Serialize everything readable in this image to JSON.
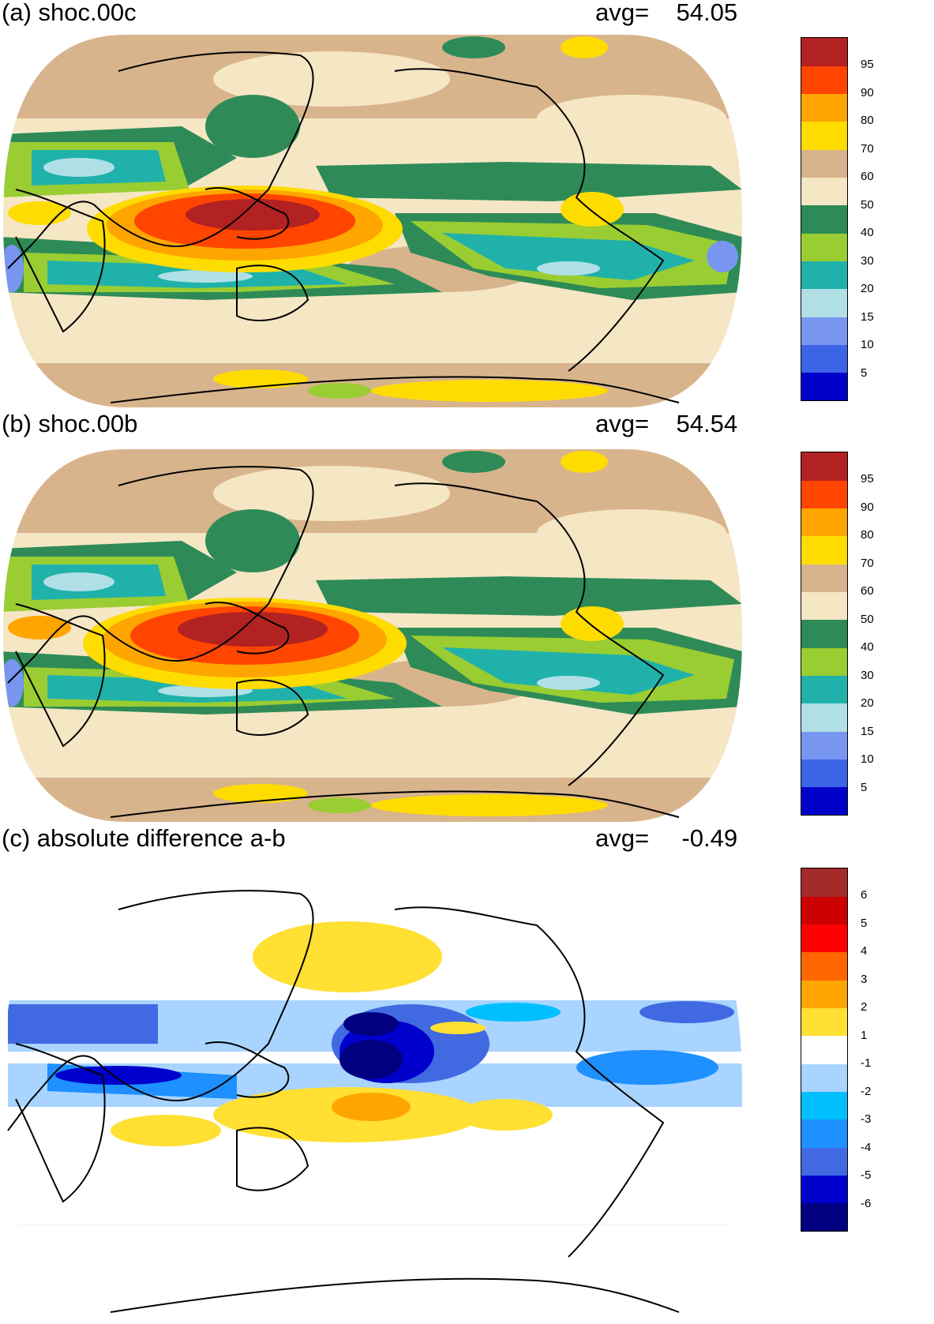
{
  "panels": [
    {
      "title": "(a) shoc.00c",
      "avg_label": "avg=",
      "avg_value": "54.05",
      "colorbar": {
        "colors": [
          "#0000c8",
          "#3c64e6",
          "#7896f0",
          "#b0e0e6",
          "#20b2aa",
          "#9acd32",
          "#2e8b57",
          "#f5e6c4",
          "#d8b48c",
          "#ffdc00",
          "#ffa500",
          "#ff4500",
          "#b22222"
        ],
        "labels": [
          "5",
          "10",
          "15",
          "20",
          "30",
          "40",
          "50",
          "60",
          "70",
          "80",
          "90",
          "95"
        ]
      }
    },
    {
      "title": "(b) shoc.00b",
      "avg_label": "avg=",
      "avg_value": "54.54",
      "colorbar": {
        "colors": [
          "#0000c8",
          "#3c64e6",
          "#7896f0",
          "#b0e0e6",
          "#20b2aa",
          "#9acd32",
          "#2e8b57",
          "#f5e6c4",
          "#d8b48c",
          "#ffdc00",
          "#ffa500",
          "#ff4500",
          "#b22222"
        ],
        "labels": [
          "5",
          "10",
          "15",
          "20",
          "30",
          "40",
          "50",
          "60",
          "70",
          "80",
          "90",
          "95"
        ]
      }
    },
    {
      "title": "(c) absolute difference a-b",
      "avg_label": "avg=",
      "avg_value": "-0.49",
      "colorbar": {
        "colors": [
          "#000080",
          "#0000cd",
          "#4169e1",
          "#1e90ff",
          "#00bfff",
          "#a8d4ff",
          "#ffffff",
          "#ffe033",
          "#ffa500",
          "#ff6600",
          "#ff0000",
          "#cc0000",
          "#a52a2a"
        ],
        "labels": [
          "-6",
          "-5",
          "-4",
          "-3",
          "-2",
          "-1",
          "1",
          "2",
          "3",
          "4",
          "5",
          "6"
        ]
      }
    }
  ]
}
